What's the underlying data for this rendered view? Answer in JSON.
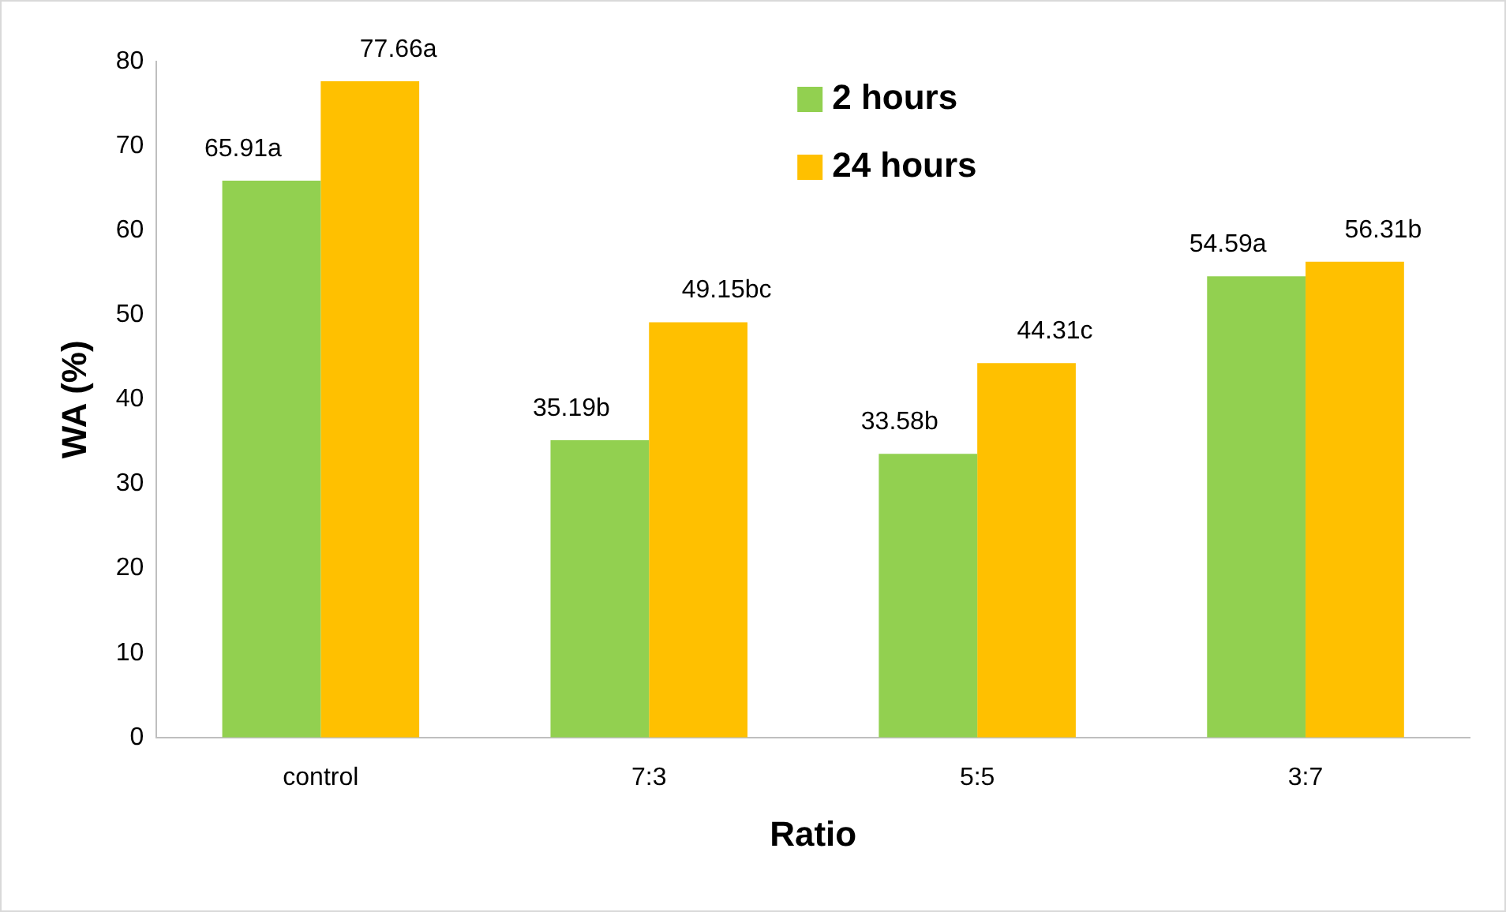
{
  "chart_data": {
    "type": "bar",
    "xlabel": "Ratio",
    "ylabel": "WA (%)",
    "categories": [
      "control",
      "7:3",
      "5:5",
      "3:7"
    ],
    "series": [
      {
        "name": "2 hours",
        "color": "#92d050",
        "values": [
          65.91,
          35.19,
          33.58,
          54.59
        ],
        "value_labels": [
          "65.91a",
          "35.19b",
          "33.58b",
          "54.59a"
        ]
      },
      {
        "name": "24 hours",
        "color": "#ffc000",
        "values": [
          77.66,
          49.15,
          44.31,
          56.31
        ],
        "value_labels": [
          "77.66a",
          "49.15bc",
          "44.31c",
          "56.31b"
        ]
      }
    ],
    "ylim": [
      0,
      80
    ],
    "yticks": [
      0,
      10,
      20,
      30,
      40,
      50,
      60,
      70,
      80
    ],
    "grid": false,
    "legend": "top"
  }
}
